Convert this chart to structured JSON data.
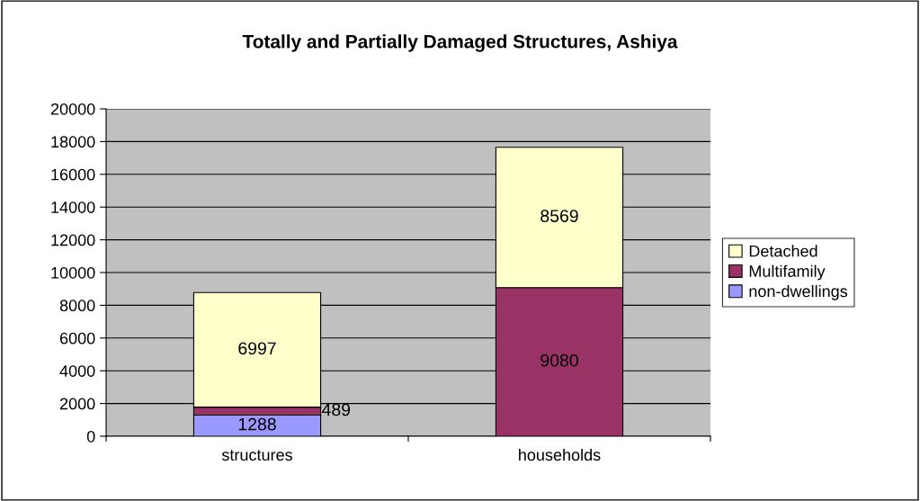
{
  "chart_data": {
    "type": "bar",
    "title": "Totally and Partially Damaged Structures, Ashiya",
    "categories": [
      "structures",
      "households"
    ],
    "stacked": true,
    "series": [
      {
        "name": "non-dwellings",
        "color": "#9999ff",
        "values": [
          1288,
          null
        ]
      },
      {
        "name": "Multifamily",
        "color": "#993366",
        "values": [
          489,
          9080
        ]
      },
      {
        "name": "Detached",
        "color": "#ffffcc",
        "values": [
          6997,
          8569
        ]
      }
    ],
    "ylim": [
      0,
      20000
    ],
    "yticks": [
      0,
      2000,
      4000,
      6000,
      8000,
      10000,
      12000,
      14000,
      16000,
      18000,
      20000
    ],
    "grid": "y",
    "legend": "right",
    "data_labels": true
  }
}
